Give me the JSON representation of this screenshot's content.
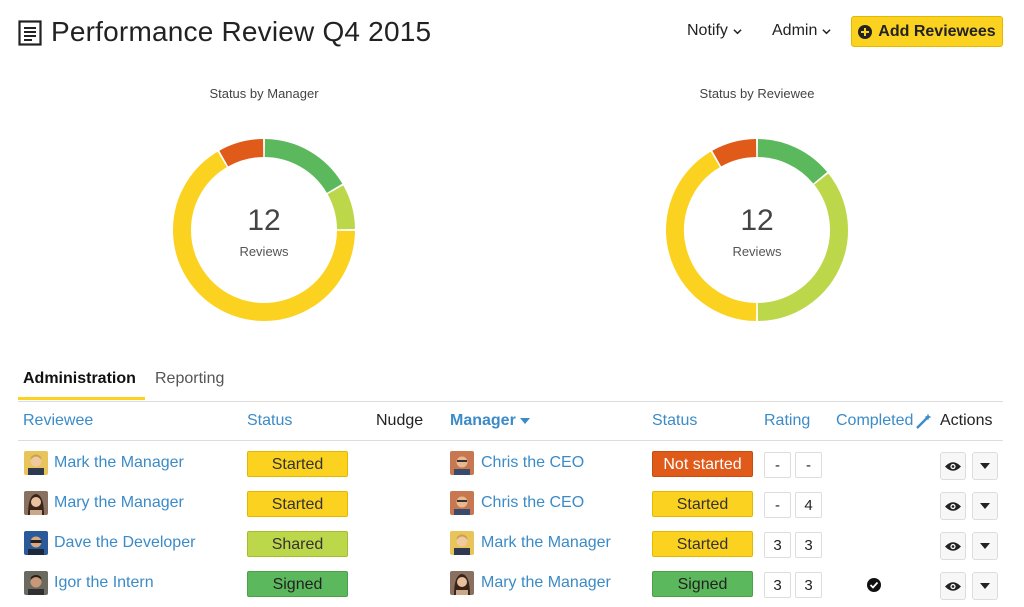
{
  "header": {
    "title": "Performance Review Q4 2015",
    "notify_label": "Notify",
    "admin_label": "Admin",
    "add_button_label": "Add Reviewees"
  },
  "charts": [
    {
      "title": "Status by Manager",
      "count": "12",
      "unit": "Reviews",
      "type": "donut",
      "slices": [
        {
          "color": "#5cb85c",
          "value": 2
        },
        {
          "color": "#bcd74a",
          "value": 1
        },
        {
          "color": "#fcd221",
          "value": 8
        },
        {
          "color": "#e05a1a",
          "value": 1
        }
      ]
    },
    {
      "title": "Status by Reviewee",
      "count": "12",
      "unit": "Reviews",
      "type": "donut",
      "slices": [
        {
          "color": "#5cb85c",
          "value": 1.7
        },
        {
          "color": "#bcd74a",
          "value": 4.3
        },
        {
          "color": "#fcd221",
          "value": 5
        },
        {
          "color": "#e05a1a",
          "value": 1
        }
      ]
    }
  ],
  "tabs": [
    {
      "label": "Administration",
      "active": true
    },
    {
      "label": "Reporting",
      "active": false
    }
  ],
  "table": {
    "headers": {
      "reviewee": "Reviewee",
      "status": "Status",
      "nudge": "Nudge",
      "manager": "Manager",
      "manager_status": "Status",
      "rating": "Rating",
      "completed": "Completed",
      "actions": "Actions"
    },
    "rows": [
      {
        "reviewee": "Mark the Manager",
        "status": "Started",
        "manager": "Chris the CEO",
        "manager_status": "Not started",
        "rating1": "-",
        "rating2": "-",
        "completed": false
      },
      {
        "reviewee": "Mary the Manager",
        "status": "Started",
        "manager": "Chris the CEO",
        "manager_status": "Started",
        "rating1": "-",
        "rating2": "4",
        "completed": false
      },
      {
        "reviewee": "Dave the Developer",
        "status": "Shared",
        "manager": "Mark the Manager",
        "manager_status": "Started",
        "rating1": "3",
        "rating2": "3",
        "completed": false
      },
      {
        "reviewee": "Igor the Intern",
        "status": "Signed",
        "manager": "Mary the Manager",
        "manager_status": "Signed",
        "rating1": "3",
        "rating2": "3",
        "completed": true
      }
    ]
  },
  "colors": {
    "accent": "#fcd221",
    "link": "#3b8bc8",
    "green": "#5cb85c",
    "lime": "#bcd74a",
    "orange": "#e05a1a"
  },
  "icons": {
    "title": "document-icon",
    "add": "plus-circle-icon",
    "completed_header": "magic-wand-icon",
    "check": "check-circle-icon",
    "view": "eye-icon",
    "dropdown": "caret-down-icon"
  }
}
